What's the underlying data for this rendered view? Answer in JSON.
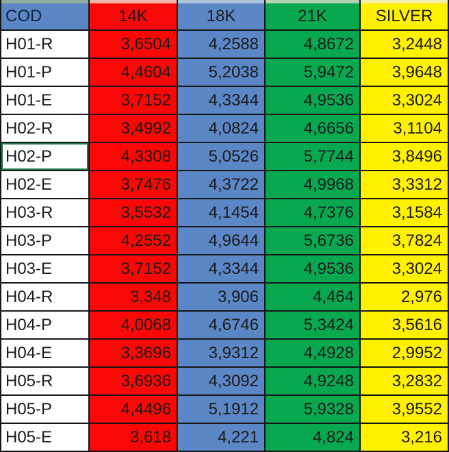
{
  "table": {
    "columns": [
      {
        "label": "COD",
        "header_color_key": "blue"
      },
      {
        "label": "14K",
        "header_color_key": "red"
      },
      {
        "label": "18K",
        "header_color_key": "blue"
      },
      {
        "label": "21K",
        "header_color_key": "green"
      },
      {
        "label": "SILVER",
        "header_color_key": "yellow"
      }
    ],
    "value_column_color_keys": [
      "red",
      "blue",
      "green",
      "yellow"
    ],
    "rows": [
      {
        "code": "H01-R",
        "values": [
          "3,6504",
          "4,2588",
          "4,8672",
          "3,2448"
        ]
      },
      {
        "code": "H01-P",
        "values": [
          "4,4604",
          "5,2038",
          "5,9472",
          "3,9648"
        ]
      },
      {
        "code": "H01-E",
        "values": [
          "3,7152",
          "4,3344",
          "4,9536",
          "3,3024"
        ]
      },
      {
        "code": "H02-R",
        "values": [
          "3,4992",
          "4,0824",
          "4,6656",
          "3,1104"
        ]
      },
      {
        "code": "H02-P",
        "values": [
          "4,3308",
          "5,0526",
          "5,7744",
          "3,8496"
        ]
      },
      {
        "code": "H02-E",
        "values": [
          "3,7476",
          "4,3722",
          "4,9968",
          "3,3312"
        ]
      },
      {
        "code": "H03-R",
        "values": [
          "3,5532",
          "4,1454",
          "4,7376",
          "3,1584"
        ]
      },
      {
        "code": "H03-P",
        "values": [
          "4,2552",
          "4,9644",
          "5,6736",
          "3,7824"
        ]
      },
      {
        "code": "H03-E",
        "values": [
          "3,7152",
          "4,3344",
          "4,9536",
          "3,3024"
        ]
      },
      {
        "code": "H04-R",
        "values": [
          "3,348",
          "3,906",
          "4,464",
          "2,976"
        ]
      },
      {
        "code": "H04-P",
        "values": [
          "4,0068",
          "4,6746",
          "5,3424",
          "3,5616"
        ]
      },
      {
        "code": "H04-E",
        "values": [
          "3,3696",
          "3,9312",
          "4,4928",
          "2,9952"
        ]
      },
      {
        "code": "H05-R",
        "values": [
          "3,6936",
          "4,3092",
          "4,9248",
          "3,2832"
        ]
      },
      {
        "code": "H05-P",
        "values": [
          "4,4496",
          "5,1912",
          "5,9328",
          "3,9552"
        ]
      },
      {
        "code": "H05-E",
        "values": [
          "3,618",
          "4,221",
          "4,824",
          "3,216"
        ]
      }
    ],
    "selected_code": "H02-P"
  },
  "colors": {
    "palette": {
      "blue": "#5B87C6",
      "red": "#FA0707",
      "green": "#07A84F",
      "yellow": "#FFF100",
      "white": "#FFFFFF"
    },
    "tints": [
      "#90AC9F",
      "#F2B3AB",
      "#AFC3D9",
      "#B3D2B0",
      "#F3EFAD"
    ],
    "selection_border": "#1E7A46",
    "gridline": "#161616"
  }
}
